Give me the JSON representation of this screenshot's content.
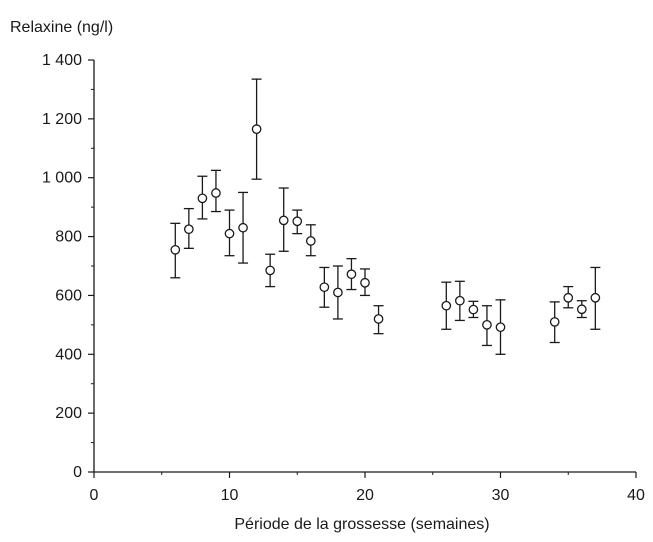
{
  "chart_data": {
    "type": "scatter",
    "ylabel": "Relaxine (ng/l)",
    "xlabel": "Période de la grossesse (semaines)",
    "xlim": [
      0,
      40
    ],
    "ylim": [
      0,
      1400
    ],
    "x_ticks": [
      0,
      10,
      20,
      30,
      40
    ],
    "x_tick_labels": [
      "0",
      "10",
      "20",
      "30",
      "40"
    ],
    "y_ticks": [
      0,
      200,
      400,
      600,
      800,
      1000,
      1200,
      1400
    ],
    "y_tick_labels": [
      "0",
      "200",
      "400",
      "600",
      "800",
      "1 000",
      "1 200",
      "1 400"
    ],
    "grid": false,
    "marker": "open-circle",
    "error_bars": true,
    "points": [
      {
        "x": 6,
        "y": 755,
        "low": 660,
        "high": 845
      },
      {
        "x": 7,
        "y": 825,
        "low": 760,
        "high": 895
      },
      {
        "x": 8,
        "y": 930,
        "low": 860,
        "high": 1005
      },
      {
        "x": 9,
        "y": 948,
        "low": 885,
        "high": 1025
      },
      {
        "x": 10,
        "y": 810,
        "low": 735,
        "high": 890
      },
      {
        "x": 11,
        "y": 830,
        "low": 710,
        "high": 950
      },
      {
        "x": 12,
        "y": 1165,
        "low": 995,
        "high": 1335
      },
      {
        "x": 13,
        "y": 685,
        "low": 630,
        "high": 740
      },
      {
        "x": 14,
        "y": 855,
        "low": 750,
        "high": 965
      },
      {
        "x": 15,
        "y": 852,
        "low": 810,
        "high": 890
      },
      {
        "x": 16,
        "y": 785,
        "low": 735,
        "high": 840
      },
      {
        "x": 17,
        "y": 628,
        "low": 560,
        "high": 695
      },
      {
        "x": 18,
        "y": 610,
        "low": 520,
        "high": 700
      },
      {
        "x": 19,
        "y": 672,
        "low": 620,
        "high": 725
      },
      {
        "x": 20,
        "y": 643,
        "low": 600,
        "high": 690
      },
      {
        "x": 21,
        "y": 520,
        "low": 470,
        "high": 565
      },
      {
        "x": 26,
        "y": 565,
        "low": 485,
        "high": 645
      },
      {
        "x": 27,
        "y": 582,
        "low": 515,
        "high": 648
      },
      {
        "x": 28,
        "y": 552,
        "low": 525,
        "high": 580
      },
      {
        "x": 29,
        "y": 500,
        "low": 430,
        "high": 565
      },
      {
        "x": 30,
        "y": 492,
        "low": 400,
        "high": 585
      },
      {
        "x": 34,
        "y": 510,
        "low": 440,
        "high": 578
      },
      {
        "x": 35,
        "y": 592,
        "low": 558,
        "high": 630
      },
      {
        "x": 36,
        "y": 553,
        "low": 525,
        "high": 582
      },
      {
        "x": 37,
        "y": 592,
        "low": 485,
        "high": 695
      }
    ],
    "colors": {
      "ink": "#1a1a1a",
      "marker_fill": "#ffffff",
      "background": "#ffffff"
    }
  }
}
